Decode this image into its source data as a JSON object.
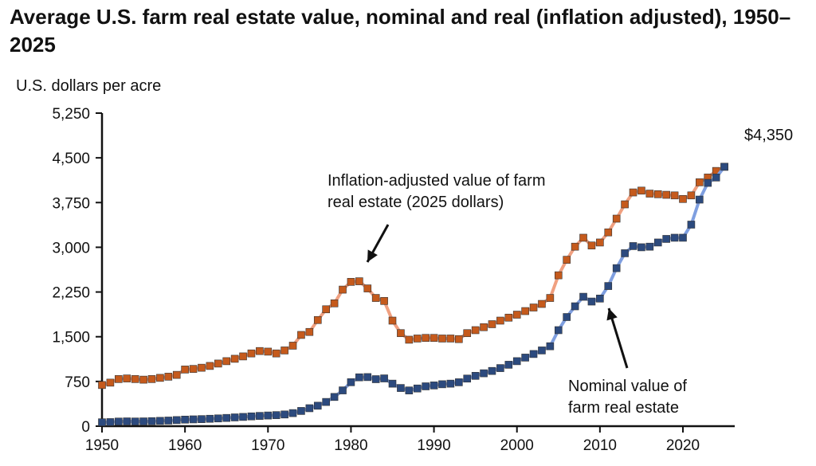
{
  "chart_data": {
    "type": "line",
    "title": "Average U.S. farm real estate value, nominal and real (inflation adjusted), 1950–2025",
    "ylabel": "U.S. dollars per acre",
    "xlabel": "",
    "xlim": [
      1950,
      2025
    ],
    "ylim": [
      0,
      5250
    ],
    "x_ticks": [
      "1950",
      "1960",
      "1970",
      "1980",
      "1990",
      "2000",
      "2010",
      "2020"
    ],
    "y_ticks": [
      "0",
      "750",
      "1,500",
      "2,250",
      "3,000",
      "3,750",
      "4,500",
      "5,250"
    ],
    "grid": false,
    "end_label": "$4,350",
    "annotations": {
      "real": "Inflation-adjusted value of farm real estate (2025 dollars)",
      "real_line1": "Inflation-adjusted value of farm",
      "real_line2": "real estate (2025 dollars)",
      "nominal_line1": "Nominal value of",
      "nominal_line2": "farm real estate"
    },
    "series": [
      {
        "key": "real",
        "color": "#c55a1c",
        "line_color": "#f0a080",
        "values": [
          690,
          730,
          790,
          800,
          790,
          780,
          790,
          810,
          830,
          860,
          950,
          960,
          980,
          1010,
          1050,
          1090,
          1130,
          1170,
          1220,
          1260,
          1250,
          1220,
          1270,
          1350,
          1530,
          1580,
          1780,
          1960,
          2060,
          2290,
          2420,
          2430,
          2310,
          2150,
          2100,
          1770,
          1560,
          1450,
          1470,
          1480,
          1480,
          1470,
          1470,
          1460,
          1560,
          1610,
          1660,
          1710,
          1770,
          1820,
          1870,
          1930,
          1990,
          2050,
          2150,
          2530,
          2790,
          3010,
          3160,
          3030,
          3080,
          3250,
          3480,
          3720,
          3920,
          3950,
          3900,
          3890,
          3880,
          3870,
          3810,
          3870,
          4090,
          4170,
          4280,
          4350
        ]
      },
      {
        "key": "nominal",
        "color": "#2c4a7e",
        "line_color": "#7f9fe0",
        "values": [
          65,
          68,
          77,
          80,
          78,
          80,
          84,
          89,
          94,
          102,
          110,
          114,
          118,
          124,
          130,
          138,
          147,
          155,
          164,
          172,
          179,
          185,
          196,
          219,
          255,
          301,
          343,
          406,
          490,
          600,
          737,
          819,
          823,
          788,
          801,
          713,
          640,
          599,
          632,
          668,
          683,
          703,
          713,
          736,
          798,
          844,
          887,
          926,
          974,
          1030,
          1090,
          1150,
          1210,
          1270,
          1340,
          1610,
          1830,
          2010,
          2170,
          2090,
          2140,
          2350,
          2650,
          2900,
          3020,
          3000,
          3010,
          3080,
          3140,
          3160,
          3160,
          3380,
          3800,
          4080,
          4170,
          4350
        ]
      }
    ]
  }
}
